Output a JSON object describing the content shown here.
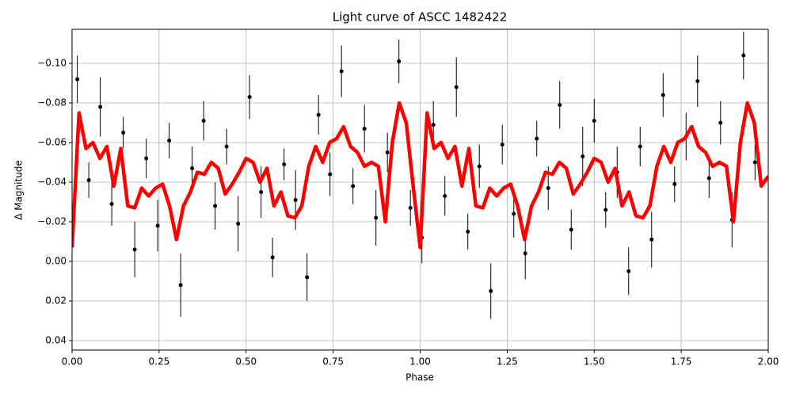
{
  "chart_data": {
    "type": "scatter",
    "title": "Light curve of ASCC 1482422",
    "xlabel": "Phase",
    "ylabel": "Δ Magnitude",
    "xlim": [
      0,
      2
    ],
    "ylim": [
      0.0448,
      -0.1172
    ],
    "grid": true,
    "xticks": [
      {
        "value": 0,
        "label": "0.00"
      },
      {
        "value": 0.25,
        "label": "0.25"
      },
      {
        "value": 0.5,
        "label": "0.50"
      },
      {
        "value": 0.75,
        "label": "0.75"
      },
      {
        "value": 1,
        "label": "1.00"
      },
      {
        "value": 1.25,
        "label": "1.25"
      },
      {
        "value": 1.5,
        "label": "1.50"
      },
      {
        "value": 1.75,
        "label": "1.75"
      },
      {
        "value": 2,
        "label": "2.00"
      }
    ],
    "yticks": [
      {
        "value": -0.1,
        "label": "−0.10"
      },
      {
        "value": -0.08,
        "label": "−0.08"
      },
      {
        "value": -0.06,
        "label": "−0.06"
      },
      {
        "value": -0.04,
        "label": "−0.04"
      },
      {
        "value": -0.02,
        "label": "−0.02"
      },
      {
        "value": 0,
        "label": "0.00"
      },
      {
        "value": 0.02,
        "label": "0.02"
      },
      {
        "value": 0.04,
        "label": "0.04"
      }
    ],
    "points": {
      "color": "#000000",
      "x": [
        0.015,
        0.048,
        0.081,
        0.114,
        0.147,
        0.18,
        0.213,
        0.246,
        0.279,
        0.312,
        0.345,
        0.378,
        0.411,
        0.444,
        0.477,
        0.51,
        0.543,
        0.576,
        0.609,
        0.642,
        0.675,
        0.708,
        0.741,
        0.774,
        0.807,
        0.84,
        0.873,
        0.906,
        0.939,
        0.972,
        1.005,
        1.038,
        1.071,
        1.104,
        1.137,
        1.17,
        1.203,
        1.236,
        1.269,
        1.302,
        1.335,
        1.368,
        1.401,
        1.434,
        1.467,
        1.5,
        1.533,
        1.566,
        1.599,
        1.632,
        1.665,
        1.698,
        1.731,
        1.764,
        1.797,
        1.83,
        1.863,
        1.896,
        1.929,
        1.962
      ],
      "y": [
        -0.092,
        -0.041,
        -0.078,
        -0.029,
        -0.065,
        -0.006,
        -0.052,
        -0.018,
        -0.061,
        0.012,
        -0.047,
        -0.071,
        -0.028,
        -0.058,
        -0.019,
        -0.083,
        -0.035,
        -0.002,
        -0.049,
        -0.031,
        0.008,
        -0.074,
        -0.044,
        -0.096,
        -0.038,
        -0.067,
        -0.022,
        -0.055,
        -0.101,
        -0.027,
        -0.012,
        -0.069,
        -0.033,
        -0.088,
        -0.015,
        -0.048,
        0.015,
        -0.059,
        -0.024,
        -0.004,
        -0.062,
        -0.037,
        -0.079,
        -0.016,
        -0.053,
        -0.071,
        -0.026,
        -0.045,
        0.005,
        -0.058,
        -0.011,
        -0.084,
        -0.039,
        -0.063,
        -0.091,
        -0.042,
        -0.07,
        -0.021,
        -0.104,
        -0.05
      ],
      "err": [
        0.012,
        0.009,
        0.015,
        0.011,
        0.008,
        0.014,
        0.01,
        0.013,
        0.009,
        0.016,
        0.011,
        0.01,
        0.012,
        0.009,
        0.014,
        0.011,
        0.013,
        0.01,
        0.008,
        0.015,
        0.012,
        0.01,
        0.011,
        0.013,
        0.009,
        0.012,
        0.014,
        0.01,
        0.011,
        0.009,
        0.013,
        0.012,
        0.01,
        0.015,
        0.009,
        0.011,
        0.014,
        0.01,
        0.012,
        0.013,
        0.009,
        0.011,
        0.012,
        0.01,
        0.015,
        0.011,
        0.009,
        0.013,
        0.012,
        0.01,
        0.014,
        0.011,
        0.009,
        0.012,
        0.013,
        0.01,
        0.011,
        0.014,
        0.012,
        0.009
      ]
    },
    "curve": {
      "color": "#ff0000",
      "x": [
        0,
        0.02,
        0.04,
        0.06,
        0.08,
        0.1,
        0.12,
        0.14,
        0.16,
        0.18,
        0.2,
        0.22,
        0.24,
        0.26,
        0.28,
        0.3,
        0.32,
        0.34,
        0.36,
        0.38,
        0.4,
        0.42,
        0.44,
        0.46,
        0.48,
        0.5,
        0.52,
        0.54,
        0.56,
        0.58,
        0.6,
        0.62,
        0.64,
        0.66,
        0.68,
        0.7,
        0.72,
        0.74,
        0.76,
        0.78,
        0.8,
        0.82,
        0.84,
        0.86,
        0.88,
        0.9,
        0.92,
        0.94,
        0.96,
        0.98,
        1,
        1.02,
        1.04,
        1.06,
        1.08,
        1.1,
        1.12,
        1.14,
        1.16,
        1.18,
        1.2,
        1.22,
        1.24,
        1.26,
        1.28,
        1.3,
        1.32,
        1.34,
        1.36,
        1.38,
        1.4,
        1.42,
        1.44,
        1.46,
        1.48,
        1.5,
        1.52,
        1.54,
        1.56,
        1.58,
        1.6,
        1.62,
        1.64,
        1.66,
        1.68,
        1.7,
        1.72,
        1.74,
        1.76,
        1.78,
        1.8,
        1.82,
        1.84,
        1.86,
        1.88,
        1.9,
        1.92,
        1.94,
        1.96,
        1.98,
        2
      ],
      "values": [
        -0.007,
        -0.075,
        -0.057,
        -0.06,
        -0.052,
        -0.058,
        -0.038,
        -0.057,
        -0.028,
        -0.027,
        -0.037,
        -0.033,
        -0.037,
        -0.039,
        -0.028,
        -0.011,
        -0.028,
        -0.035,
        -0.045,
        -0.044,
        -0.05,
        -0.047,
        -0.034,
        -0.039,
        -0.045,
        -0.052,
        -0.05,
        -0.04,
        -0.047,
        -0.028,
        -0.035,
        -0.023,
        -0.022,
        -0.028,
        -0.048,
        -0.058,
        -0.05,
        -0.06,
        -0.062,
        -0.068,
        -0.058,
        -0.055,
        -0.048,
        -0.05,
        -0.048,
        -0.02,
        -0.06,
        -0.08,
        -0.07,
        -0.038,
        -0.007,
        -0.075,
        -0.057,
        -0.06,
        -0.052,
        -0.058,
        -0.038,
        -0.057,
        -0.028,
        -0.027,
        -0.037,
        -0.033,
        -0.037,
        -0.039,
        -0.028,
        -0.011,
        -0.028,
        -0.035,
        -0.045,
        -0.044,
        -0.05,
        -0.047,
        -0.034,
        -0.039,
        -0.045,
        -0.052,
        -0.05,
        -0.04,
        -0.047,
        -0.028,
        -0.035,
        -0.023,
        -0.022,
        -0.028,
        -0.048,
        -0.058,
        -0.05,
        -0.06,
        -0.062,
        -0.068,
        -0.058,
        -0.055,
        -0.048,
        -0.05,
        -0.048,
        -0.02,
        -0.06,
        -0.08,
        -0.07,
        -0.038,
        -0.043
      ]
    }
  }
}
